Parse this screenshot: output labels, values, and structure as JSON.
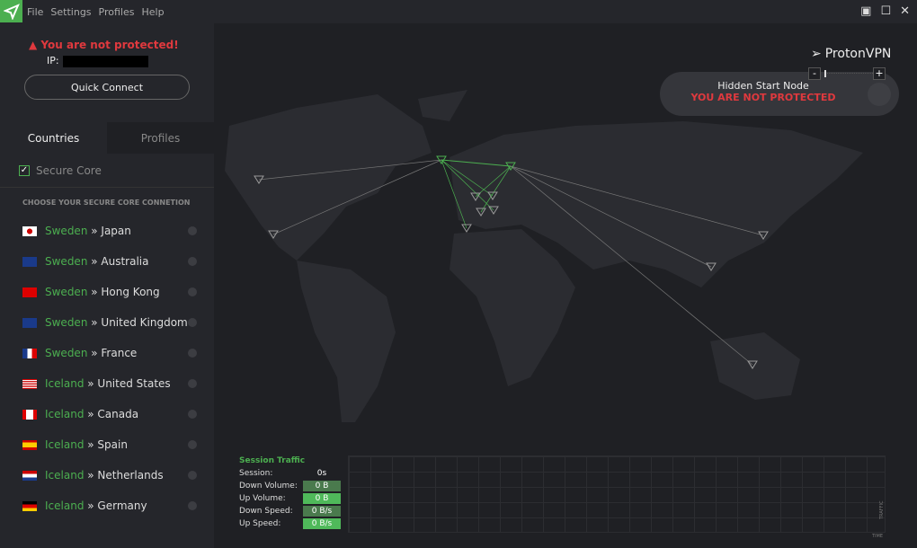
{
  "menu": [
    "File",
    "Settings",
    "Profiles",
    "Help"
  ],
  "status": {
    "warning": "You are not protected!",
    "ip_label": "IP:"
  },
  "quick_connect": "Quick Connect",
  "tabs": {
    "countries": "Countries",
    "profiles": "Profiles"
  },
  "secure_core": {
    "label": "Secure Core",
    "checked": true
  },
  "list_heading": "CHOOSE YOUR SECURE CORE CONNETION",
  "servers": [
    {
      "entry": "Sweden",
      "exit": "» Japan",
      "flag": "jp"
    },
    {
      "entry": "Sweden",
      "exit": "» Australia",
      "flag": "au"
    },
    {
      "entry": "Sweden",
      "exit": "» Hong Kong",
      "flag": "hk"
    },
    {
      "entry": "Sweden",
      "exit": "» United Kingdom",
      "flag": "gb"
    },
    {
      "entry": "Sweden",
      "exit": "» France",
      "flag": "fr"
    },
    {
      "entry": "Iceland",
      "exit": "» United States",
      "flag": "us"
    },
    {
      "entry": "Iceland",
      "exit": "» Canada",
      "flag": "ca"
    },
    {
      "entry": "Iceland",
      "exit": "» Spain",
      "flag": "es"
    },
    {
      "entry": "Iceland",
      "exit": "» Netherlands",
      "flag": "nl"
    },
    {
      "entry": "Iceland",
      "exit": "» Germany",
      "flag": "de"
    }
  ],
  "map": {
    "node_title": "Hidden Start Node",
    "node_status": "YOU ARE NOT PROTECTED",
    "brand": "ProtonVPN",
    "zoom_minus": "-",
    "zoom_plus": "+"
  },
  "traffic": {
    "title": "Session Traffic",
    "rows": [
      {
        "label": "Session:",
        "value": "0s"
      },
      {
        "label": "Down Volume:",
        "value": "0  B"
      },
      {
        "label": "Up Volume:",
        "value": "0  B"
      },
      {
        "label": "Down Speed:",
        "value": "0  B/s"
      },
      {
        "label": "Up Speed:",
        "value": "0  B/s"
      }
    ],
    "x_axis": "TIME",
    "y_axis": "TRAFFIC"
  },
  "colors": {
    "accent": "#4caf50",
    "danger": "#e0393e"
  }
}
